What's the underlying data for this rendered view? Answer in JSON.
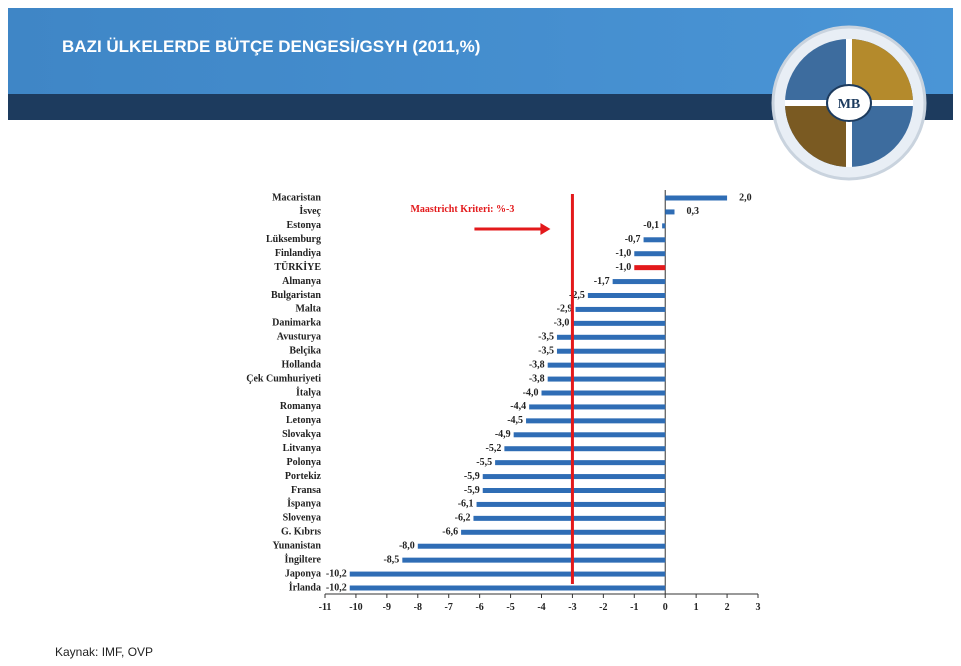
{
  "header": {
    "title": "BAZI ÜLKELERDE  BÜTÇE DENGESİ/GSYH  (2011,%)",
    "logo_text": "MB"
  },
  "chart_data": {
    "type": "hbar",
    "categories": [
      "Macaristan",
      "İsveç",
      "Estonya",
      "Lüksemburg",
      "Finlandiya",
      "TÜRKİYE",
      "Almanya",
      "Bulgaristan",
      "Malta",
      "Danimarka",
      "Avusturya",
      "Belçika",
      "Hollanda",
      "Çek Cumhuriyeti",
      "İtalya",
      "Romanya",
      "Letonya",
      "Slovakya",
      "Litvanya",
      "Polonya",
      "Portekiz",
      "Fransa",
      "İspanya",
      "Slovenya",
      "G. Kıbrıs",
      "Yunanistan",
      "İngiltere",
      "Japonya",
      "İrlanda"
    ],
    "values": [
      2.0,
      0.3,
      -0.1,
      -0.7,
      -1.0,
      -1.0,
      -1.7,
      -2.5,
      -2.9,
      -3.0,
      -3.5,
      -3.5,
      -3.8,
      -3.8,
      -4.0,
      -4.4,
      -4.5,
      -4.9,
      -5.2,
      -5.5,
      -5.9,
      -5.9,
      -6.1,
      -6.2,
      -6.6,
      -8.0,
      -8.5,
      -10.2,
      -10.2
    ],
    "value_labels": [
      "2,0",
      "0,3",
      "-0,1",
      "-0,7",
      "-1,0",
      "-1,0",
      "-1,7",
      "-2,5",
      "-2,9",
      "-3,0",
      "-3,5",
      "-3,5",
      "-3,8",
      "-3,8",
      "-4,0",
      "-4,4",
      "-4,5",
      "-4,9",
      "-5,2",
      "-5,5",
      "-5,9",
      "-5,9",
      "-6,1",
      "-6,2",
      "-6,6",
      "-8,0",
      "-8,5",
      "-10,2",
      "-10,2"
    ],
    "colors": [
      "#2f6db5",
      "#2f6db5",
      "#2f6db5",
      "#2f6db5",
      "#2f6db5",
      "#e3191b",
      "#2f6db5",
      "#2f6db5",
      "#2f6db5",
      "#2f6db5",
      "#2f6db5",
      "#2f6db5",
      "#2f6db5",
      "#2f6db5",
      "#2f6db5",
      "#2f6db5",
      "#2f6db5",
      "#2f6db5",
      "#2f6db5",
      "#2f6db5",
      "#2f6db5",
      "#2f6db5",
      "#2f6db5",
      "#2f6db5",
      "#2f6db5",
      "#2f6db5",
      "#2f6db5",
      "#2f6db5",
      "#2f6db5"
    ],
    "xlim": [
      -11,
      3
    ],
    "xticks": [
      -11,
      -10,
      -9,
      -8,
      -7,
      -6,
      -5,
      -4,
      -3,
      -2,
      -1,
      0,
      1,
      2,
      3
    ],
    "reference_line": {
      "value": -3,
      "label": "Maastricht Kriteri: %-3",
      "color": "#e3191b"
    }
  },
  "footer": {
    "source": "Kaynak:  IMF, OVP"
  }
}
